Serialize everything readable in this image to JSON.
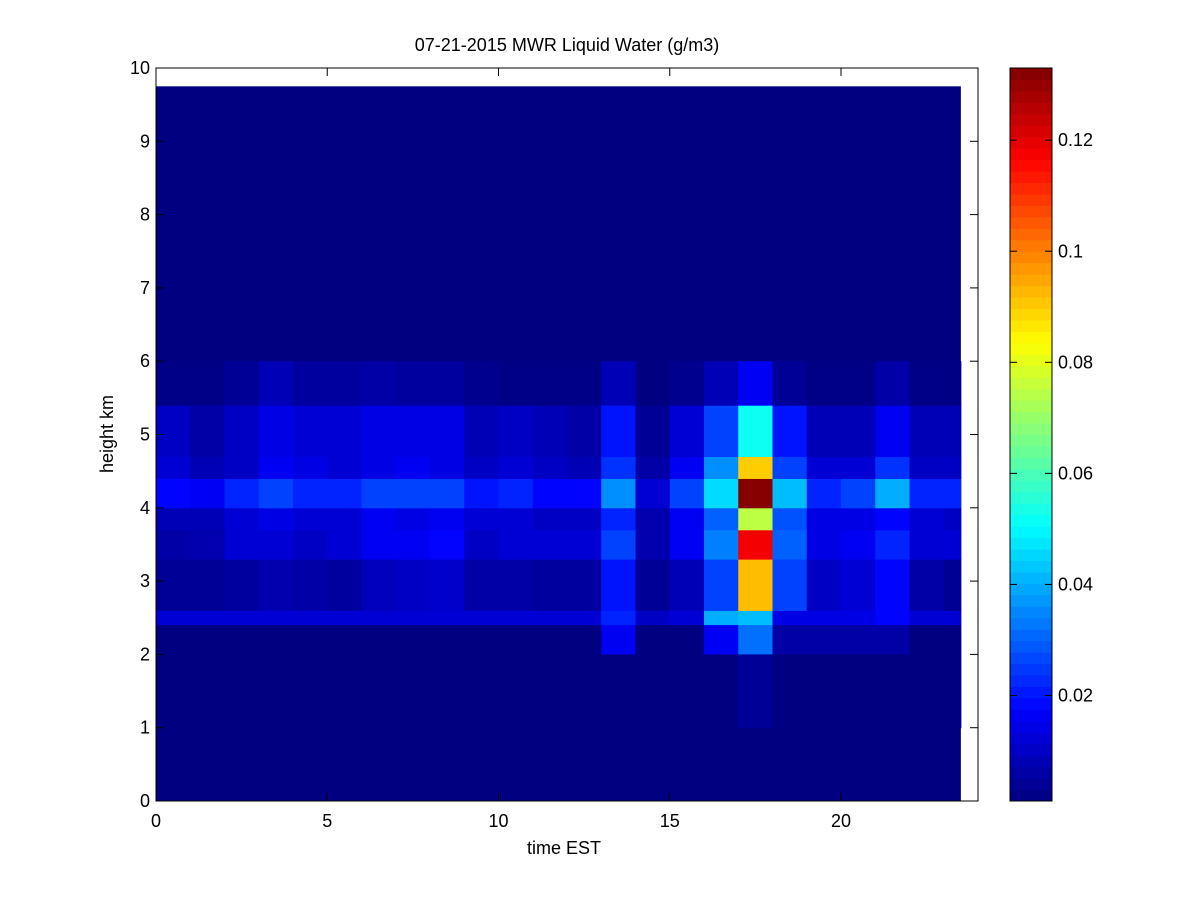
{
  "chart_data": {
    "type": "heatmap",
    "title": "07-21-2015 MWR Liquid Water (g/m3)",
    "xlabel": "time EST",
    "ylabel": "height km",
    "xlim": [
      0,
      24
    ],
    "ylim": [
      0,
      10
    ],
    "x_ticks": [
      {
        "value": 0,
        "label": "0"
      },
      {
        "value": 5,
        "label": "5"
      },
      {
        "value": 10,
        "label": "10"
      },
      {
        "value": 15,
        "label": "15"
      },
      {
        "value": 20,
        "label": "20"
      }
    ],
    "y_ticks": [
      {
        "value": 0,
        "label": "0"
      },
      {
        "value": 1,
        "label": "1"
      },
      {
        "value": 2,
        "label": "2"
      },
      {
        "value": 3,
        "label": "3"
      },
      {
        "value": 4,
        "label": "4"
      },
      {
        "value": 5,
        "label": "5"
      },
      {
        "value": 6,
        "label": "6"
      },
      {
        "value": 7,
        "label": "7"
      },
      {
        "value": 8,
        "label": "8"
      },
      {
        "value": 9,
        "label": "9"
      },
      {
        "value": 10,
        "label": "10"
      }
    ],
    "colorbar": {
      "colormap": "jet",
      "range": [
        0.001,
        0.133
      ],
      "ticks": [
        {
          "value": 0.02,
          "label": "0.02"
        },
        {
          "value": 0.04,
          "label": "0.04"
        },
        {
          "value": 0.06,
          "label": "0.06"
        },
        {
          "value": 0.08,
          "label": "0.08"
        },
        {
          "value": 0.1,
          "label": "0.1"
        },
        {
          "value": 0.12,
          "label": "0.12"
        }
      ]
    },
    "grid": false,
    "x_extent": [
      0,
      23.5
    ],
    "y_extent": [
      0,
      9.75
    ],
    "column_times": [
      0,
      1,
      2,
      3,
      4,
      5,
      6,
      7,
      8,
      9,
      10,
      11,
      12,
      13,
      14,
      15,
      16,
      17,
      18,
      19,
      20,
      21,
      22,
      23
    ],
    "column_width": 1.0,
    "background_value": 0.001,
    "feature_layers": [
      {
        "y0": 2.4,
        "y1": 2.6,
        "values": [
          0.012,
          0.012,
          0.012,
          0.012,
          0.012,
          0.012,
          0.012,
          0.012,
          0.012,
          0.012,
          0.012,
          0.012,
          0.012,
          0.022,
          0.01,
          0.012,
          0.04,
          0.042,
          0.014,
          0.014,
          0.014,
          0.018,
          0.012,
          0.012
        ]
      },
      {
        "y0": 2.0,
        "y1": 2.4,
        "values": [
          0.001,
          0.001,
          0.001,
          0.001,
          0.001,
          0.001,
          0.001,
          0.001,
          0.001,
          0.001,
          0.001,
          0.001,
          0.001,
          0.016,
          0.001,
          0.001,
          0.016,
          0.032,
          0.006,
          0.006,
          0.006,
          0.006,
          0.001,
          0.001
        ]
      },
      {
        "y0": 2.6,
        "y1": 3.3,
        "values": [
          0.004,
          0.004,
          0.005,
          0.007,
          0.006,
          0.005,
          0.009,
          0.01,
          0.011,
          0.006,
          0.006,
          0.005,
          0.005,
          0.02,
          0.004,
          0.008,
          0.026,
          0.092,
          0.026,
          0.01,
          0.012,
          0.018,
          0.006,
          0.004
        ]
      },
      {
        "y0": 3.3,
        "y1": 3.7,
        "values": [
          0.006,
          0.007,
          0.012,
          0.012,
          0.01,
          0.012,
          0.016,
          0.016,
          0.018,
          0.01,
          0.012,
          0.012,
          0.012,
          0.026,
          0.007,
          0.016,
          0.034,
          0.118,
          0.03,
          0.014,
          0.016,
          0.022,
          0.012,
          0.012
        ]
      },
      {
        "y0": 3.7,
        "y1": 4.0,
        "values": [
          0.008,
          0.008,
          0.012,
          0.014,
          0.012,
          0.012,
          0.016,
          0.014,
          0.016,
          0.012,
          0.012,
          0.01,
          0.01,
          0.022,
          0.007,
          0.016,
          0.03,
          0.075,
          0.028,
          0.014,
          0.014,
          0.018,
          0.012,
          0.01
        ]
      },
      {
        "y0": 4.0,
        "y1": 4.4,
        "values": [
          0.018,
          0.016,
          0.022,
          0.026,
          0.022,
          0.022,
          0.026,
          0.026,
          0.026,
          0.02,
          0.022,
          0.018,
          0.018,
          0.036,
          0.012,
          0.026,
          0.046,
          0.132,
          0.042,
          0.022,
          0.026,
          0.04,
          0.022,
          0.022
        ]
      },
      {
        "y0": 4.4,
        "y1": 4.7,
        "values": [
          0.012,
          0.008,
          0.01,
          0.016,
          0.014,
          0.012,
          0.014,
          0.016,
          0.014,
          0.01,
          0.012,
          0.01,
          0.008,
          0.024,
          0.006,
          0.016,
          0.036,
          0.09,
          0.026,
          0.012,
          0.012,
          0.024,
          0.01,
          0.01
        ]
      },
      {
        "y0": 4.7,
        "y1": 5.4,
        "values": [
          0.01,
          0.006,
          0.01,
          0.014,
          0.012,
          0.012,
          0.014,
          0.014,
          0.014,
          0.008,
          0.01,
          0.008,
          0.006,
          0.02,
          0.004,
          0.012,
          0.026,
          0.052,
          0.02,
          0.008,
          0.008,
          0.016,
          0.008,
          0.008
        ]
      },
      {
        "y0": 5.4,
        "y1": 6.0,
        "values": [
          0.002,
          0.002,
          0.004,
          0.008,
          0.005,
          0.005,
          0.006,
          0.005,
          0.005,
          0.003,
          0.002,
          0.002,
          0.002,
          0.008,
          0.001,
          0.003,
          0.008,
          0.016,
          0.004,
          0.002,
          0.002,
          0.006,
          0.002,
          0.002
        ]
      },
      {
        "y0": 1.0,
        "y1": 2.0,
        "values": [
          0.001,
          0.001,
          0.001,
          0.001,
          0.001,
          0.001,
          0.001,
          0.001,
          0.001,
          0.001,
          0.001,
          0.001,
          0.001,
          0.001,
          0.001,
          0.001,
          0.001,
          0.004,
          0.001,
          0.001,
          0.001,
          0.001,
          0.001,
          0.001
        ]
      }
    ]
  }
}
